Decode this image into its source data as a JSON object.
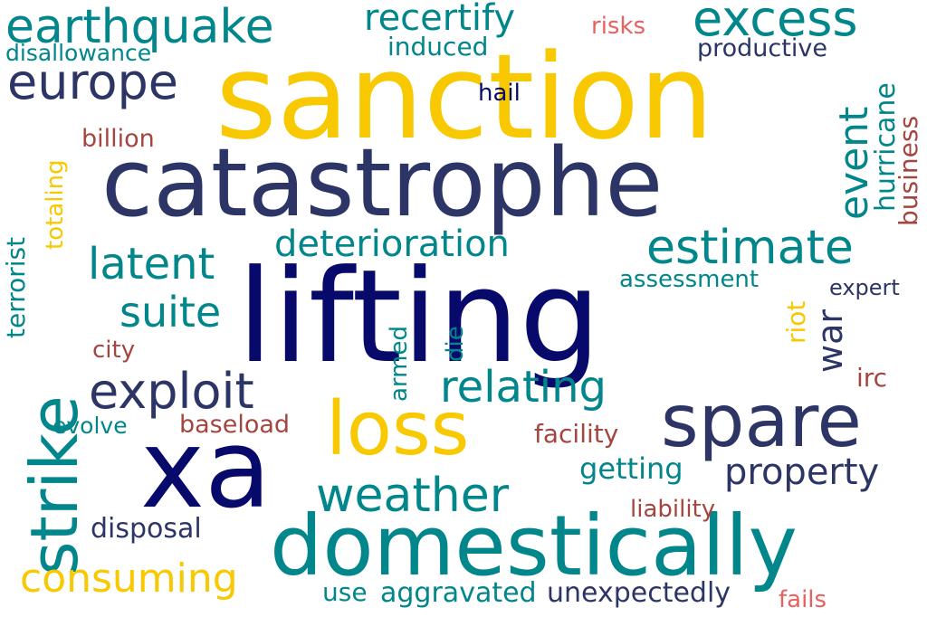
{
  "palette": {
    "yellow": "#f8c800",
    "navy": "#2c3565",
    "darknavy": "#070a6b",
    "teal": "#00868b",
    "brown": "#a5453f",
    "red": "#e96060",
    "white": "#ffffff"
  },
  "words": {
    "sanction": "sanction",
    "catastrophe": "catastrophe",
    "lifting": "lifting",
    "xa": "xa",
    "domestically": "domestically",
    "spare": "spare",
    "strike": "strike",
    "loss": "loss",
    "earthquake": "earthquake",
    "excess": "excess",
    "europe": "europe",
    "recertify": "recertify",
    "estimate": "estimate",
    "exploit": "exploit",
    "weather": "weather",
    "deterioration": "deterioration",
    "relating": "relating",
    "latent": "latent",
    "property": "property",
    "consuming": "consuming",
    "event": "event",
    "suite": "suite",
    "war": "war",
    "hurricane": "hurricane",
    "business": "business",
    "terrorist": "terrorist",
    "totaling": "totaling",
    "unexpectedly": "unexpectedly",
    "aggravated": "aggravated",
    "disposal": "disposal",
    "getting": "getting",
    "induced": "induced",
    "productive": "productive",
    "disallowance": "disallowance",
    "billion": "billion",
    "assessment": "assessment",
    "riot": "riot",
    "armed": "armed",
    "die": "die",
    "facility": "facility",
    "liability": "liability",
    "baseload": "baseload",
    "evolve": "evolve",
    "city": "city",
    "irc": "irc",
    "expert": "expert",
    "hail": "hail",
    "risks": "risks",
    "use": "use",
    "fails": "fails"
  }
}
